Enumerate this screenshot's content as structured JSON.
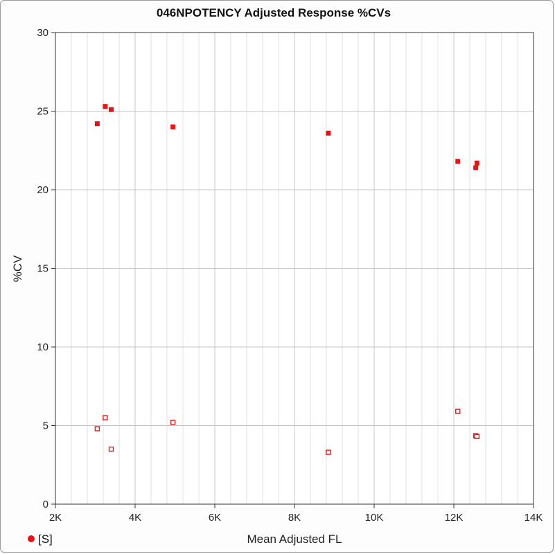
{
  "chart_data": {
    "type": "scatter",
    "title": "046NPOTENCY Adjusted Response %CVs",
    "xlabel": "Mean Adjusted FL",
    "ylabel": "%CV",
    "xlim": [
      2000,
      14000
    ],
    "ylim": [
      0,
      30
    ],
    "x_major_ticks": [
      2000,
      4000,
      6000,
      8000,
      10000,
      12000,
      14000
    ],
    "x_tick_labels": [
      "2K",
      "4K",
      "6K",
      "8K",
      "10K",
      "12K",
      "14K"
    ],
    "x_minor_step": 400,
    "y_major_ticks": [
      0,
      5,
      10,
      15,
      20,
      25,
      30
    ],
    "y_tick_labels": [
      "0",
      "5",
      "10",
      "15",
      "20",
      "25",
      "30"
    ],
    "grid": true,
    "legend": {
      "position": "bottom-left",
      "entries": [
        "[S]"
      ]
    },
    "color": "#ee1111",
    "series": [
      {
        "name": "[S]",
        "marker": "filled-square",
        "points": [
          {
            "x": 3050,
            "y": 24.2
          },
          {
            "x": 3250,
            "y": 25.3
          },
          {
            "x": 3400,
            "y": 25.1
          },
          {
            "x": 4950,
            "y": 24.0
          },
          {
            "x": 8850,
            "y": 23.6
          },
          {
            "x": 12100,
            "y": 21.8
          },
          {
            "x": 12550,
            "y": 21.4
          },
          {
            "x": 12580,
            "y": 21.7
          }
        ]
      },
      {
        "marker": "hollow-square",
        "points": [
          {
            "x": 3050,
            "y": 4.8
          },
          {
            "x": 3250,
            "y": 5.5
          },
          {
            "x": 3400,
            "y": 3.5
          },
          {
            "x": 4950,
            "y": 5.2
          },
          {
            "x": 8850,
            "y": 3.3
          },
          {
            "x": 12100,
            "y": 5.9
          },
          {
            "x": 12550,
            "y": 4.35
          },
          {
            "x": 12580,
            "y": 4.3
          }
        ]
      }
    ]
  }
}
